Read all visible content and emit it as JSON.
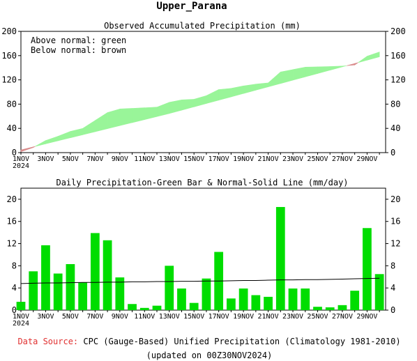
{
  "page_title": "Upper_Parana",
  "footer": {
    "source_label": "Data Source:",
    "source_text": "CPC (Gauge-Based) Unified Precipitation (Climatology 1981-2010)",
    "updated": "(updated on 00Z30NOV2024)"
  },
  "colors": {
    "above_normal": "#99f599",
    "below_normal": "#d98c8c",
    "bar": "#00dd00",
    "source_label": "#e03030",
    "axis": "#000000"
  },
  "chart_data": [
    {
      "type": "area",
      "title": "Observed Accumulated Precipitation (mm)",
      "legend": [
        "Above normal: green",
        "Below normal: brown"
      ],
      "legend_placement": "top-left",
      "unit": "mm",
      "x_tick_labels": [
        "1NOV",
        "3NOV",
        "5NOV",
        "7NOV",
        "9NOV",
        "11NOV",
        "13NOV",
        "15NOV",
        "17NOV",
        "19NOV",
        "21NOV",
        "23NOV",
        "25NOV",
        "27NOV",
        "29NOV"
      ],
      "x_start_year": "2024",
      "days": [
        1,
        2,
        3,
        4,
        5,
        6,
        7,
        8,
        9,
        10,
        11,
        12,
        13,
        14,
        15,
        16,
        17,
        18,
        19,
        20,
        21,
        22,
        23,
        24,
        25,
        26,
        27,
        28,
        29,
        30
      ],
      "observed": [
        1.5,
        8.5,
        20,
        27,
        35,
        40,
        53,
        66,
        72,
        73,
        74,
        75,
        83,
        87,
        88,
        94,
        104,
        106,
        110,
        113,
        115,
        133,
        137,
        141,
        141.5,
        142,
        142.8,
        144.5,
        159,
        166
      ],
      "normal": [
        4.5,
        9.5,
        14.5,
        19.5,
        24.5,
        29.5,
        34.5,
        39.5,
        44.5,
        49.5,
        54.5,
        59.5,
        64.5,
        70,
        75.5,
        81,
        86.5,
        92,
        97.5,
        103,
        108.5,
        114,
        119.5,
        125,
        130.5,
        136,
        141.5,
        147,
        152.5,
        158
      ],
      "ylim": [
        0,
        200
      ],
      "y_ticks": [
        0,
        40,
        80,
        120,
        160,
        200
      ],
      "grid": false
    },
    {
      "type": "bar",
      "title": "Daily Precipitation-Green Bar & Normal-Solid Line (mm/day)",
      "unit": "mm/day",
      "x_tick_labels": [
        "1NOV",
        "3NOV",
        "5NOV",
        "7NOV",
        "9NOV",
        "11NOV",
        "13NOV",
        "15NOV",
        "17NOV",
        "19NOV",
        "21NOV",
        "23NOV",
        "25NOV",
        "27NOV",
        "29NOV"
      ],
      "x_start_year": "2024",
      "days": [
        1,
        2,
        3,
        4,
        5,
        6,
        7,
        8,
        9,
        10,
        11,
        12,
        13,
        14,
        15,
        16,
        17,
        18,
        19,
        20,
        21,
        22,
        23,
        24,
        25,
        26,
        27,
        28,
        29,
        30
      ],
      "values": [
        1.5,
        7,
        11.7,
        6.6,
        8.3,
        5,
        13.9,
        12.6,
        5.9,
        1.1,
        0.4,
        0.8,
        8,
        3.9,
        1.3,
        5.7,
        10.5,
        2.1,
        3.9,
        2.7,
        2.4,
        18.6,
        3.9,
        3.9,
        0.6,
        0.5,
        0.9,
        3.5,
        14.8,
        6.5
      ],
      "normal": [
        4.8,
        4.85,
        4.9,
        4.9,
        4.95,
        5,
        5,
        5.05,
        5.05,
        5.1,
        5.1,
        5.15,
        5.15,
        5.2,
        5.2,
        5.25,
        5.25,
        5.3,
        5.35,
        5.35,
        5.4,
        5.45,
        5.45,
        5.5,
        5.5,
        5.55,
        5.6,
        5.65,
        5.7,
        5.75
      ],
      "ylim": [
        0,
        22
      ],
      "y_ticks": [
        0,
        4,
        8,
        12,
        16,
        20
      ],
      "grid": false
    }
  ]
}
